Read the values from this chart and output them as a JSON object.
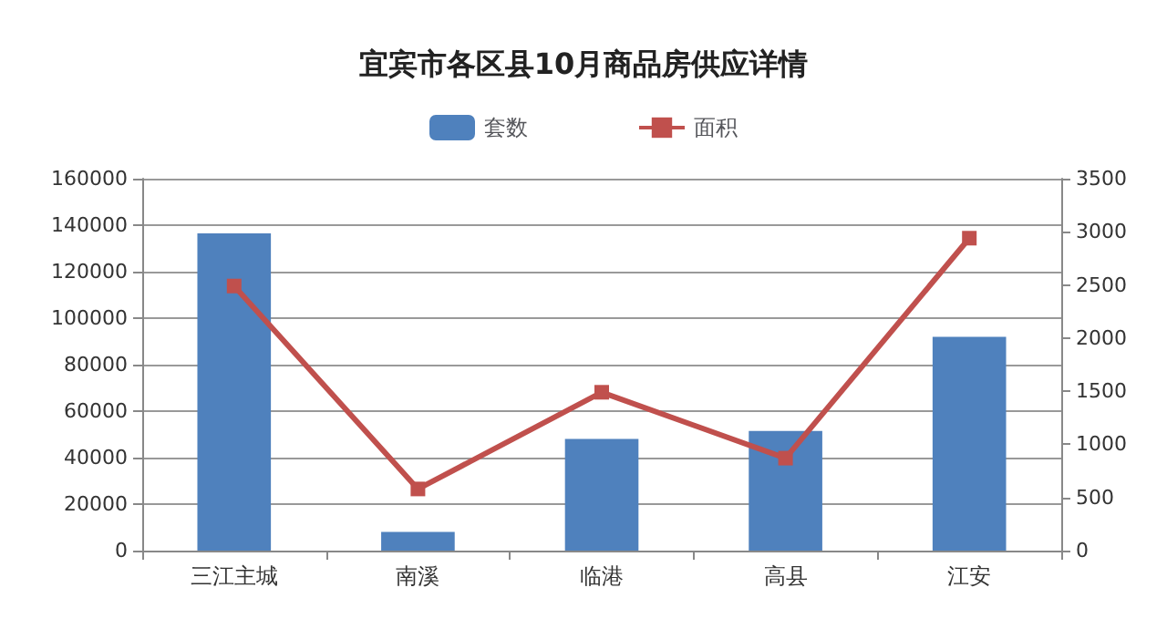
{
  "chart_data": {
    "type": "bar",
    "title": "宜宾市各区县10月商品房供应详情",
    "categories": [
      "三江主城",
      "南溪",
      "临港",
      "高县",
      "江安"
    ],
    "series": [
      {
        "name": "套数",
        "color": "#4f81bd",
        "values": [
          136500,
          8000,
          48000,
          51500,
          92000
        ]
      },
      {
        "name": "面积",
        "type": "line",
        "axis": "y2",
        "color": "#c0504d",
        "marker": "square",
        "values": [
          2490,
          580,
          1490,
          870,
          2940
        ]
      }
    ],
    "ylim": [
      0,
      160000
    ],
    "yticks": [
      0,
      20000,
      40000,
      60000,
      80000,
      100000,
      120000,
      140000,
      160000
    ],
    "y2lim": [
      0,
      3500
    ],
    "y2ticks": [
      0,
      500,
      1000,
      1500,
      2000,
      2500,
      3000,
      3500
    ],
    "grid": "y",
    "legend": "top"
  }
}
